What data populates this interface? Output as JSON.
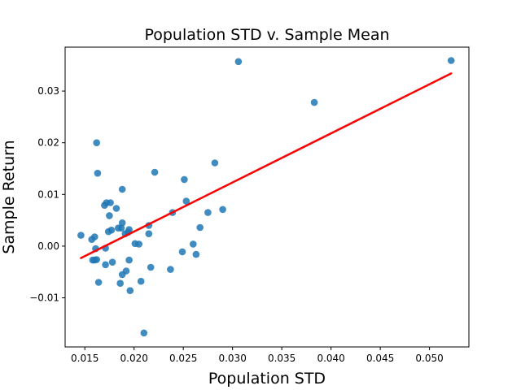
{
  "chart_data": {
    "type": "scatter",
    "title": "Population STD v. Sample Mean",
    "xlabel": "Population STD",
    "ylabel": "Sample Return",
    "xlim": [
      0.013,
      0.054
    ],
    "ylim": [
      -0.0195,
      0.0385
    ],
    "x_ticks": [
      0.015,
      0.02,
      0.025,
      0.03,
      0.035,
      0.04,
      0.045,
      0.05
    ],
    "x_tick_labels": [
      "0.015",
      "0.020",
      "0.025",
      "0.030",
      "0.035",
      "0.040",
      "0.045",
      "0.050"
    ],
    "y_ticks": [
      -0.01,
      0.0,
      0.01,
      0.02,
      0.03
    ],
    "y_tick_labels": [
      "−0.01",
      "0.00",
      "0.01",
      "0.02",
      "0.03"
    ],
    "grid": false,
    "legend": "none",
    "point_color": "#1f77b4",
    "line_color": "#ff0000",
    "points": [
      {
        "x": 0.0146,
        "y": 0.0021
      },
      {
        "x": 0.0157,
        "y": 0.0013
      },
      {
        "x": 0.0158,
        "y": -0.0027
      },
      {
        "x": 0.016,
        "y": 0.0018
      },
      {
        "x": 0.016,
        "y": -0.0027
      },
      {
        "x": 0.0161,
        "y": -0.0005
      },
      {
        "x": 0.0162,
        "y": -0.0026
      },
      {
        "x": 0.0162,
        "y": 0.02
      },
      {
        "x": 0.0163,
        "y": 0.0141
      },
      {
        "x": 0.0164,
        "y": -0.007
      },
      {
        "x": 0.017,
        "y": 0.0079
      },
      {
        "x": 0.0171,
        "y": -0.0004
      },
      {
        "x": 0.0171,
        "y": -0.0036
      },
      {
        "x": 0.0172,
        "y": 0.0084
      },
      {
        "x": 0.0174,
        "y": 0.0028
      },
      {
        "x": 0.0175,
        "y": 0.0059
      },
      {
        "x": 0.0176,
        "y": 0.0084
      },
      {
        "x": 0.0177,
        "y": 0.0031
      },
      {
        "x": 0.0178,
        "y": -0.0031
      },
      {
        "x": 0.0182,
        "y": 0.0073
      },
      {
        "x": 0.0184,
        "y": 0.0035
      },
      {
        "x": 0.0186,
        "y": -0.0072
      },
      {
        "x": 0.0187,
        "y": 0.0035
      },
      {
        "x": 0.0188,
        "y": 0.0045
      },
      {
        "x": 0.0188,
        "y": 0.011
      },
      {
        "x": 0.0188,
        "y": -0.0055
      },
      {
        "x": 0.0191,
        "y": 0.0024
      },
      {
        "x": 0.0192,
        "y": -0.0048
      },
      {
        "x": 0.0194,
        "y": 0.0027
      },
      {
        "x": 0.0195,
        "y": 0.0032
      },
      {
        "x": 0.0195,
        "y": -0.0027
      },
      {
        "x": 0.0196,
        "y": -0.0086
      },
      {
        "x": 0.0201,
        "y": 0.0005
      },
      {
        "x": 0.0205,
        "y": 0.0004
      },
      {
        "x": 0.0207,
        "y": -0.0068
      },
      {
        "x": 0.021,
        "y": -0.0168
      },
      {
        "x": 0.0215,
        "y": 0.004
      },
      {
        "x": 0.0215,
        "y": 0.0024
      },
      {
        "x": 0.0217,
        "y": -0.0041
      },
      {
        "x": 0.0221,
        "y": 0.0143
      },
      {
        "x": 0.0237,
        "y": -0.0045
      },
      {
        "x": 0.0239,
        "y": 0.0065
      },
      {
        "x": 0.0249,
        "y": -0.0011
      },
      {
        "x": 0.0251,
        "y": 0.0129
      },
      {
        "x": 0.0253,
        "y": 0.0087
      },
      {
        "x": 0.026,
        "y": 0.0004
      },
      {
        "x": 0.0263,
        "y": -0.0016
      },
      {
        "x": 0.0267,
        "y": 0.0036
      },
      {
        "x": 0.0275,
        "y": 0.0065
      },
      {
        "x": 0.0282,
        "y": 0.0161
      },
      {
        "x": 0.029,
        "y": 0.0071
      },
      {
        "x": 0.0306,
        "y": 0.0357
      },
      {
        "x": 0.0383,
        "y": 0.0278
      },
      {
        "x": 0.0522,
        "y": 0.0359
      }
    ],
    "trendline": {
      "x": [
        0.0146,
        0.0522
      ],
      "y": [
        -0.0023,
        0.0334
      ]
    }
  }
}
